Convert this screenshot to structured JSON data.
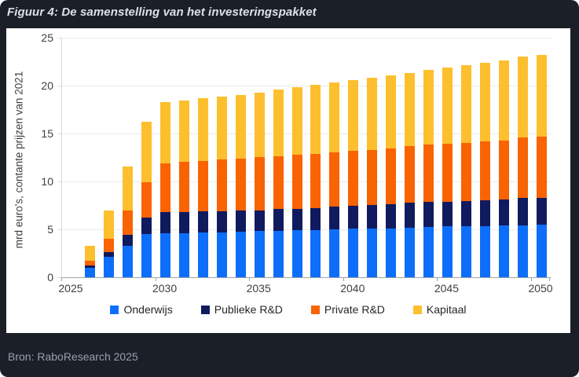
{
  "figure": {
    "title": "Figuur 4: De samenstelling van het investeringspakket",
    "source": "Bron: RaboResearch 2025"
  },
  "colors": {
    "background": "#1B1F28",
    "panel": "#FFFFFF",
    "grid": "#EBEBEB",
    "axis_x": "#9CA3AA",
    "axis_y": "#D9D9D9",
    "tick_text": "#3F3F3F",
    "legend_text": "#262626",
    "title_text": "#DDE1E7",
    "source_text": "#98A0AC",
    "onderwijs": "#0D6EFA",
    "publieke_rd": "#101A5E",
    "private_rd": "#F96302",
    "kapitaal": "#FDBF2D"
  },
  "chart_data": {
    "type": "bar",
    "stacked": true,
    "title": "Figuur 4: De samenstelling van het investeringspakket",
    "ylabel": "mrd euro's, contante prijzen van 2021",
    "xlabel": "",
    "ylim": [
      0,
      25
    ],
    "yticks": [
      0,
      5,
      10,
      15,
      20,
      25
    ],
    "xticks": [
      2025,
      2030,
      2035,
      2040,
      2045,
      2050
    ],
    "x_axis_span": [
      2025,
      2050
    ],
    "grid": "horizontal",
    "legend_position": "bottom",
    "categories": [
      2026,
      2027,
      2028,
      2029,
      2030,
      2031,
      2032,
      2033,
      2034,
      2035,
      2036,
      2037,
      2038,
      2039,
      2040,
      2041,
      2042,
      2043,
      2044,
      2045,
      2046,
      2047,
      2048,
      2049,
      2050
    ],
    "series": [
      {
        "name": "Onderwijs",
        "color": "#0D6EFA",
        "values": [
          1.0,
          2.15,
          3.3,
          4.5,
          4.6,
          4.6,
          4.65,
          4.7,
          4.75,
          4.8,
          4.85,
          4.9,
          4.95,
          5.0,
          5.05,
          5.05,
          5.1,
          5.2,
          5.25,
          5.3,
          5.3,
          5.35,
          5.45,
          5.45,
          5.5
        ]
      },
      {
        "name": "Publieke R&D",
        "color": "#101A5E",
        "values": [
          0.2,
          0.5,
          1.1,
          1.7,
          2.2,
          2.2,
          2.2,
          2.2,
          2.2,
          2.2,
          2.25,
          2.25,
          2.3,
          2.35,
          2.4,
          2.5,
          2.55,
          2.55,
          2.6,
          2.6,
          2.65,
          2.7,
          2.7,
          2.8,
          2.8
        ]
      },
      {
        "name": "Private R&D",
        "color": "#F96302",
        "values": [
          0.55,
          1.35,
          2.55,
          3.75,
          5.1,
          5.25,
          5.3,
          5.4,
          5.45,
          5.55,
          5.55,
          5.65,
          5.65,
          5.7,
          5.75,
          5.75,
          5.8,
          5.9,
          6.0,
          6.0,
          6.1,
          6.15,
          6.15,
          6.3,
          6.4
        ]
      },
      {
        "name": "Kapitaal",
        "color": "#FDBF2D",
        "values": [
          1.55,
          2.95,
          4.6,
          6.25,
          6.35,
          6.4,
          6.5,
          6.55,
          6.65,
          6.75,
          6.9,
          7.0,
          7.15,
          7.25,
          7.35,
          7.5,
          7.6,
          7.65,
          7.75,
          7.95,
          8.05,
          8.2,
          8.35,
          8.45,
          8.5
        ]
      }
    ]
  }
}
